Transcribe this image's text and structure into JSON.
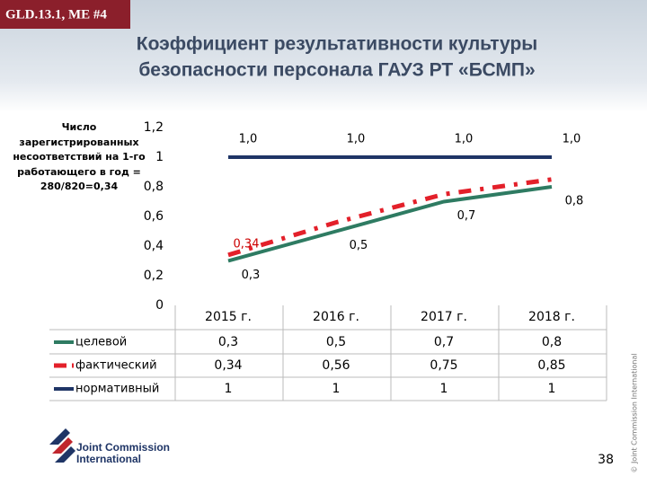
{
  "slide": {
    "code": "GLD.13.1, ME #4",
    "page": "38",
    "logo": [
      "Joint Commission",
      "International"
    ],
    "copyright": "© Joint Commission International"
  },
  "chart_data": {
    "type": "line",
    "title": [
      "Коэффициент результативности культуры",
      "безопасности персонала ГАУЗ РТ «БСМП»"
    ],
    "y_label": "Число зарегистрированных несоответствий на 1-го работающего в год = 280/820=0,34",
    "categories": [
      "2015 г.",
      "2016 г.",
      "2017 г.",
      "2018 г."
    ],
    "ylim": [
      0,
      1.2
    ],
    "yticks": [
      0,
      {
        "value": 0.2,
        "label": "0,2"
      },
      {
        "value": 0.4,
        "label": "0,4"
      },
      {
        "value": 0.6,
        "label": "0,6"
      },
      {
        "value": 0.8,
        "label": "0,8"
      },
      1,
      {
        "value": 1.2,
        "label": "1,2"
      }
    ],
    "series": [
      {
        "name": "целевой",
        "color": "#2e7b62",
        "dash": false,
        "values": [
          0.3,
          0.5,
          0.7,
          0.8
        ],
        "value_labels": [
          "0,3",
          "0,5",
          "0,7",
          "0,8"
        ]
      },
      {
        "name": "фактический",
        "color": "#e3202a",
        "dash": true,
        "values": [
          0.34,
          0.56,
          0.75,
          0.85
        ],
        "value_labels": [
          "0,34",
          null,
          null,
          null
        ]
      },
      {
        "name": "нормативный",
        "color": "#1f3566",
        "dash": false,
        "values": [
          1,
          1,
          1,
          1
        ],
        "value_labels": [
          "1,0",
          "1,0",
          "1,0",
          "1,0"
        ]
      }
    ],
    "table": {
      "rows": [
        [
          "0,3",
          "0,5",
          "0,7",
          "0,8"
        ],
        [
          "0,34",
          "0,56",
          "0,75",
          "0,85"
        ],
        [
          "1",
          "1",
          "1",
          "1"
        ]
      ]
    }
  }
}
